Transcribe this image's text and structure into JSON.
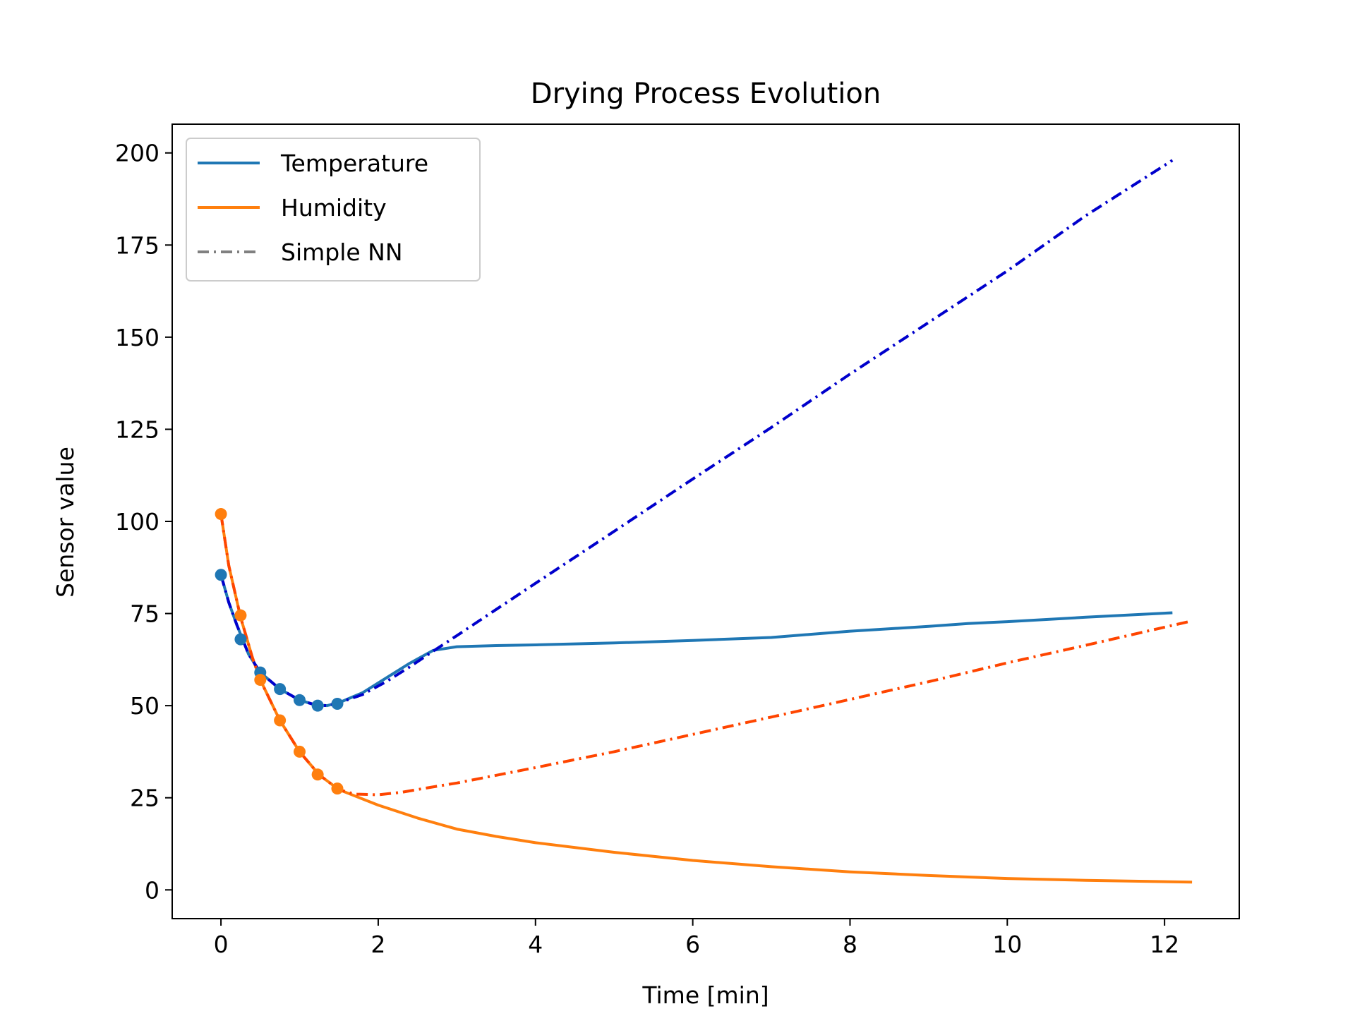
{
  "chart_data": {
    "type": "line",
    "title": "Drying Process Evolution",
    "xlabel": "Time [min]",
    "ylabel": "Sensor value",
    "xlim": [
      -0.62,
      12.95
    ],
    "ylim": [
      -7.8,
      207.8
    ],
    "xticks": [
      0,
      2,
      4,
      6,
      8,
      10,
      12
    ],
    "yticks": [
      0,
      25,
      50,
      75,
      100,
      125,
      150,
      175,
      200
    ],
    "grid": false,
    "legend": {
      "placement": "upper-left",
      "entries": [
        {
          "name": "Temperature",
          "color": "#1f77b4",
          "style": "solid"
        },
        {
          "name": "Humidity",
          "color": "#ff7f0e",
          "style": "solid"
        },
        {
          "name": "Simple NN",
          "color": "#808080",
          "style": "dashdot"
        }
      ]
    },
    "series": [
      {
        "name": "Temperature",
        "color": "#1f77b4",
        "style": "solid",
        "x": [
          0,
          0.1,
          0.2,
          0.35,
          0.5,
          0.75,
          1.0,
          1.2,
          1.35,
          1.5,
          1.8,
          2.1,
          2.4,
          2.7,
          3.0,
          3.5,
          4.0,
          5.0,
          6.0,
          7.0,
          8.0,
          9.0,
          9.5,
          10.0,
          11.0,
          12.1
        ],
        "y": [
          85.5,
          78,
          72,
          64,
          59,
          54.5,
          51.5,
          50.2,
          50,
          50.8,
          53.5,
          57.5,
          61.5,
          65,
          66,
          66.3,
          66.5,
          67,
          67.7,
          68.5,
          70.2,
          71.5,
          72.3,
          72.8,
          74,
          75.2
        ]
      },
      {
        "name": "Humidity",
        "color": "#ff7f0e",
        "style": "solid",
        "x": [
          0,
          0.1,
          0.25,
          0.4,
          0.5,
          0.75,
          1.0,
          1.25,
          1.5,
          2.0,
          2.5,
          3.0,
          3.5,
          4.0,
          5.0,
          6.0,
          7.0,
          8.0,
          9.0,
          10.0,
          11.0,
          12.35
        ],
        "y": [
          102,
          88,
          74,
          63,
          57,
          46,
          37.5,
          31.2,
          27.2,
          23,
          19.5,
          16.5,
          14.5,
          12.8,
          10.2,
          8,
          6.3,
          4.9,
          3.9,
          3.1,
          2.6,
          2.1
        ]
      },
      {
        "name": "Temperature Simple NN",
        "color": "#0000cc",
        "style": "dashdot",
        "x": [
          0,
          0.1,
          0.2,
          0.35,
          0.5,
          0.75,
          1.0,
          1.2,
          1.35,
          1.5,
          1.8,
          2.1,
          2.4,
          2.7,
          3.0,
          4.0,
          5.0,
          6.0,
          7.0,
          8.0,
          9.0,
          10.0,
          11.0,
          12.1
        ],
        "y": [
          85.5,
          78,
          72,
          64,
          59,
          54.5,
          51.5,
          50.2,
          50,
          50.8,
          53.0,
          56.5,
          60.5,
          64.8,
          69,
          83.2,
          97.3,
          111.5,
          125.5,
          140,
          154,
          168,
          183,
          198
        ]
      },
      {
        "name": "Humidity Simple NN",
        "color": "#ff4500",
        "style": "dashdot",
        "x": [
          0,
          0.1,
          0.25,
          0.4,
          0.5,
          0.75,
          1.0,
          1.25,
          1.5,
          1.7,
          2.0,
          2.3,
          2.6,
          3.0,
          4.0,
          5.0,
          6.0,
          7.0,
          8.0,
          9.0,
          10.0,
          11.0,
          12.35
        ],
        "y": [
          102,
          88,
          74,
          63,
          57,
          46,
          37.5,
          31.2,
          27.2,
          26,
          25.8,
          26.5,
          27.6,
          29,
          33.2,
          37.5,
          42.2,
          46.9,
          51.7,
          56.5,
          61.6,
          66.4,
          73
        ]
      }
    ],
    "markers": [
      {
        "series": "Temperature",
        "color": "#1f77b4",
        "x": [
          0,
          0.25,
          0.5,
          0.75,
          1.0,
          1.23,
          1.48
        ],
        "y": [
          85.5,
          68,
          59,
          54.5,
          51.5,
          50,
          50.5
        ]
      },
      {
        "series": "Humidity",
        "color": "#ff7f0e",
        "x": [
          0,
          0.25,
          0.5,
          0.75,
          1.0,
          1.23,
          1.48
        ],
        "y": [
          102,
          74.5,
          57,
          46,
          37.5,
          31.3,
          27.5
        ]
      }
    ]
  }
}
